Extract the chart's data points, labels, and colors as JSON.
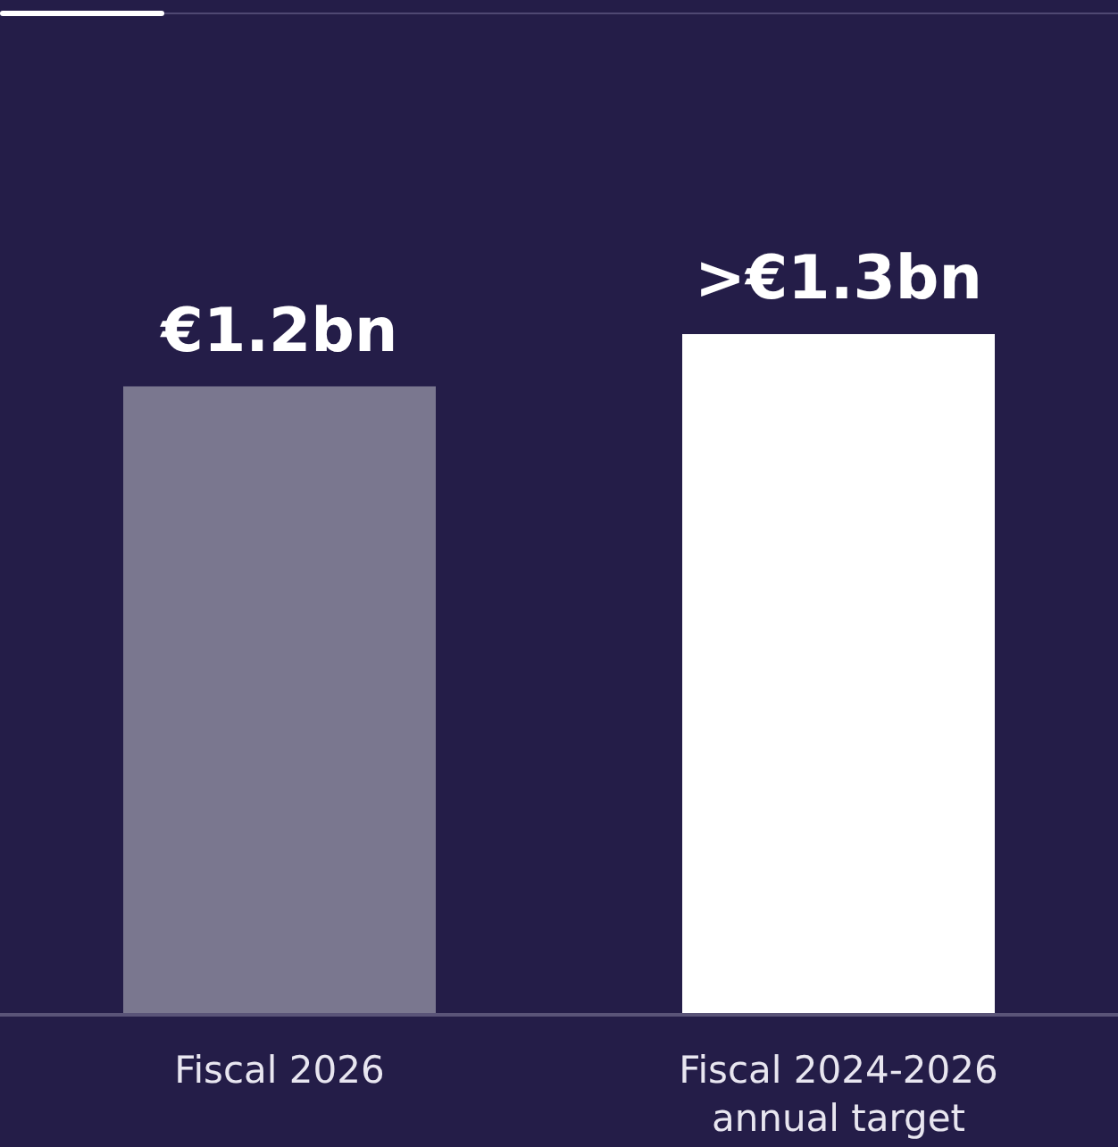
{
  "chart_data": {
    "type": "bar",
    "categories": [
      "Fiscal 2026",
      "Fiscal 2024-2026 annual target"
    ],
    "values": [
      1.2,
      1.3
    ],
    "colors": [
      "#7a778f",
      "#ffffff"
    ],
    "value_labels": [
      "€1.2bn",
      ">€1.3bn"
    ]
  }
}
